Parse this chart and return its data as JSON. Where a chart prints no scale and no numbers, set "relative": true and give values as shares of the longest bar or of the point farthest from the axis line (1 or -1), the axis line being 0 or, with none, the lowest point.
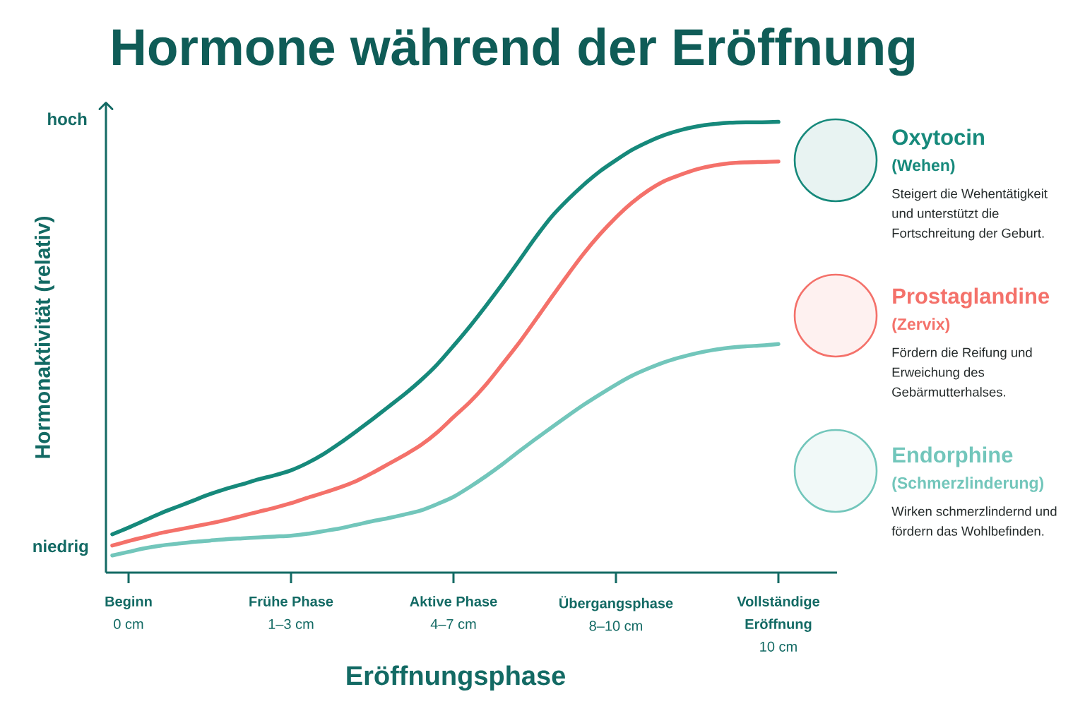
{
  "chart_data": {
    "type": "line",
    "title": "Hormone während der Eröffnung",
    "xlabel": "Eröffnungsphase",
    "ylabel": "Hormonaktivität (relativ)",
    "categories": [
      null,
      "**Beginn**\n0 cm",
      null,
      null,
      null,
      null,
      null,
      null,
      null,
      null,
      null,
      "**Frühe Phase**\n1–3 cm",
      null,
      null,
      null,
      null,
      null,
      null,
      null,
      null,
      null,
      "**Aktive Phase**\n4–7 cm",
      null,
      null,
      null,
      null,
      null,
      null,
      null,
      null,
      null,
      "**Übergangsphase**\n8–10 cm",
      null,
      null,
      null,
      null,
      null,
      null,
      null,
      null,
      null,
      "**Vollständige**\n**Eröffnung**\n10 cm"
    ],
    "relative": true,
    "series": [
      {
        "name": "Oxytocin",
        "color": "#16897b",
        "values": [
          0.085,
          0.1,
          0.116,
          0.132,
          0.146,
          0.16,
          0.174,
          0.186,
          0.196,
          0.207,
          0.216,
          0.227,
          0.243,
          0.263,
          0.287,
          0.313,
          0.34,
          0.368,
          0.396,
          0.427,
          0.462,
          0.503,
          0.546,
          0.592,
          0.64,
          0.69,
          0.741,
          0.788,
          0.826,
          0.86,
          0.89,
          0.915,
          0.938,
          0.956,
          0.971,
          0.982,
          0.99,
          0.995,
          0.998,
          0.999,
          0.999,
          1.0
        ]
      },
      {
        "name": "Prostaglandine",
        "color": "#f4716a",
        "values": [
          0.06,
          0.07,
          0.079,
          0.088,
          0.095,
          0.102,
          0.109,
          0.117,
          0.126,
          0.135,
          0.144,
          0.154,
          0.166,
          0.177,
          0.189,
          0.203,
          0.221,
          0.241,
          0.261,
          0.283,
          0.311,
          0.345,
          0.378,
          0.417,
          0.462,
          0.508,
          0.558,
          0.609,
          0.659,
          0.707,
          0.75,
          0.788,
          0.821,
          0.848,
          0.869,
          0.883,
          0.895,
          0.903,
          0.908,
          0.91,
          0.911,
          0.912
        ]
      },
      {
        "name": "Endorphine",
        "color": "#72c6bb",
        "values": [
          0.038,
          0.046,
          0.054,
          0.06,
          0.064,
          0.068,
          0.071,
          0.074,
          0.076,
          0.078,
          0.08,
          0.082,
          0.086,
          0.092,
          0.098,
          0.106,
          0.114,
          0.121,
          0.129,
          0.138,
          0.152,
          0.168,
          0.19,
          0.214,
          0.24,
          0.268,
          0.295,
          0.321,
          0.347,
          0.372,
          0.395,
          0.417,
          0.437,
          0.453,
          0.467,
          0.478,
          0.487,
          0.494,
          0.499,
          0.502,
          0.504,
          0.507
        ]
      }
    ],
    "legend": "right",
    "annotations": [
      "hoch",
      "niedrig",
      "(Wehen)",
      "Steigert die Wehentätigkeit und unterstützt die Fortschreitung der Geburt.",
      "(Zervix)",
      "Fördern die Reifung und Erweichung des Gebärmutterhalses.",
      "(Schmerzlinderung)",
      "Wirken schmerzlindernd und fördern das Wohlbefinden."
    ]
  }
}
